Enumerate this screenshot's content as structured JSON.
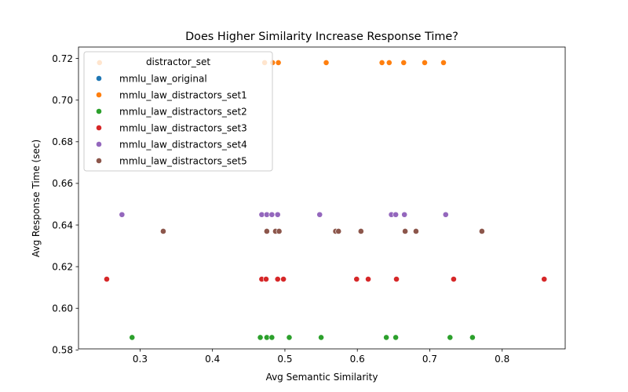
{
  "chart_data": {
    "type": "scatter",
    "title": "Does Higher Similarity Increase Response Time?",
    "xlabel": "Avg Semantic Similarity",
    "ylabel": "Avg Response Time (sec)",
    "xlim": [
      0.215,
      0.887
    ],
    "ylim": [
      0.5805,
      0.7255
    ],
    "xticks": [
      0.3,
      0.4,
      0.5,
      0.6,
      0.7,
      0.8
    ],
    "xtick_labels": [
      "0.3",
      "0.4",
      "0.5",
      "0.6",
      "0.7",
      "0.8"
    ],
    "yticks": [
      0.58,
      0.6,
      0.62,
      0.64,
      0.66,
      0.68,
      0.7,
      0.72
    ],
    "ytick_labels": [
      "0.58",
      "0.60",
      "0.62",
      "0.64",
      "0.66",
      "0.68",
      "0.70",
      "0.72"
    ],
    "grid": false,
    "legend": {
      "title": "distractor_set",
      "position": "upper-left"
    },
    "series": [
      {
        "name": "mmlu_law_original",
        "color": "#1f77b4",
        "points": []
      },
      {
        "name": "mmlu_law_distractors_set1",
        "color": "#ff7f0e",
        "points": [
          [
            0.244,
            0.718
          ],
          [
            0.472,
            0.718
          ],
          [
            0.483,
            0.718
          ],
          [
            0.491,
            0.718
          ],
          [
            0.557,
            0.718
          ],
          [
            0.634,
            0.718
          ],
          [
            0.644,
            0.718
          ],
          [
            0.664,
            0.718
          ],
          [
            0.693,
            0.718
          ],
          [
            0.719,
            0.718
          ]
        ]
      },
      {
        "name": "mmlu_law_distractors_set2",
        "color": "#2ca02c",
        "points": [
          [
            0.289,
            0.586
          ],
          [
            0.466,
            0.586
          ],
          [
            0.475,
            0.586
          ],
          [
            0.482,
            0.586
          ],
          [
            0.506,
            0.586
          ],
          [
            0.55,
            0.586
          ],
          [
            0.64,
            0.586
          ],
          [
            0.653,
            0.586
          ],
          [
            0.728,
            0.586
          ],
          [
            0.759,
            0.586
          ]
        ]
      },
      {
        "name": "mmlu_law_distractors_set3",
        "color": "#d62728",
        "points": [
          [
            0.254,
            0.614
          ],
          [
            0.468,
            0.614
          ],
          [
            0.474,
            0.614
          ],
          [
            0.49,
            0.614
          ],
          [
            0.498,
            0.614
          ],
          [
            0.599,
            0.614
          ],
          [
            0.615,
            0.614
          ],
          [
            0.654,
            0.614
          ],
          [
            0.733,
            0.614
          ],
          [
            0.858,
            0.614
          ]
        ]
      },
      {
        "name": "mmlu_law_distractors_set4",
        "color": "#9467bd",
        "points": [
          [
            0.275,
            0.645
          ],
          [
            0.468,
            0.645
          ],
          [
            0.475,
            0.645
          ],
          [
            0.482,
            0.645
          ],
          [
            0.49,
            0.645
          ],
          [
            0.548,
            0.645
          ],
          [
            0.647,
            0.645
          ],
          [
            0.653,
            0.645
          ],
          [
            0.665,
            0.645
          ],
          [
            0.722,
            0.645
          ]
        ]
      },
      {
        "name": "mmlu_law_distractors_set5",
        "color": "#8c564b",
        "points": [
          [
            0.332,
            0.637
          ],
          [
            0.475,
            0.637
          ],
          [
            0.487,
            0.637
          ],
          [
            0.492,
            0.637
          ],
          [
            0.57,
            0.637
          ],
          [
            0.574,
            0.637
          ],
          [
            0.605,
            0.637
          ],
          [
            0.666,
            0.637
          ],
          [
            0.681,
            0.637
          ],
          [
            0.772,
            0.637
          ]
        ]
      }
    ]
  }
}
